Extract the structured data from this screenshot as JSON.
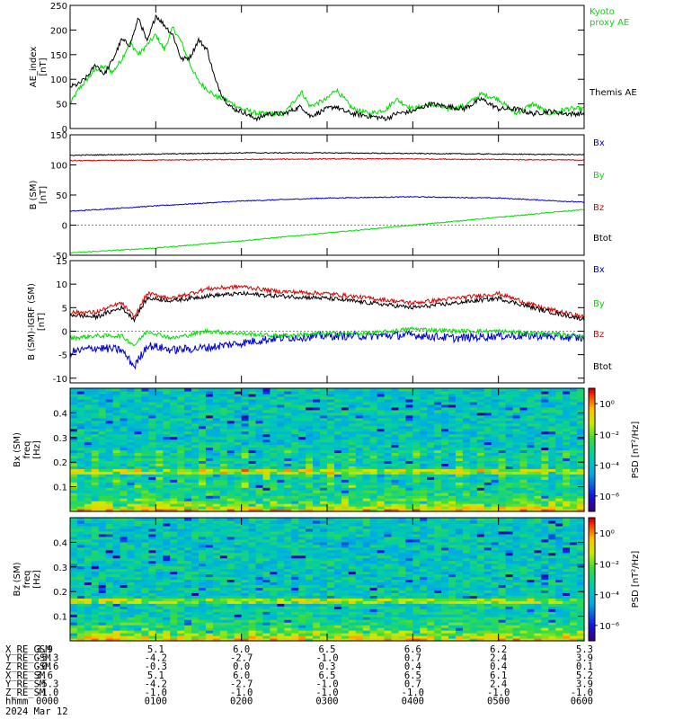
{
  "figure": {
    "date_label": "2024 Mar 12"
  },
  "chart_data": [
    {
      "type": "line",
      "ylabel": [
        "AE_index",
        "[nT]"
      ],
      "ylim": [
        0,
        250
      ],
      "yticks": [
        0,
        50,
        100,
        150,
        200,
        250
      ],
      "xlim": [
        0,
        6
      ],
      "series": [
        {
          "name": "Kyoto proxy AE",
          "color": "#00dd00",
          "x": [
            0,
            0.1,
            0.2,
            0.3,
            0.4,
            0.5,
            0.6,
            0.7,
            0.8,
            0.9,
            1.0,
            1.1,
            1.2,
            1.3,
            1.4,
            1.5,
            1.6,
            1.7,
            1.8,
            1.9,
            2.0,
            2.1,
            2.2,
            2.3,
            2.5,
            2.7,
            2.8,
            3.0,
            3.1,
            3.2,
            3.3,
            3.5,
            3.7,
            3.8,
            4.0,
            4.2,
            4.4,
            4.6,
            4.8,
            5.0,
            5.2,
            5.4,
            5.6,
            5.8,
            6.0
          ],
          "y": [
            50,
            80,
            100,
            120,
            125,
            115,
            140,
            175,
            150,
            170,
            190,
            160,
            205,
            175,
            130,
            95,
            80,
            65,
            60,
            50,
            40,
            35,
            30,
            30,
            30,
            75,
            45,
            60,
            80,
            60,
            40,
            30,
            40,
            60,
            40,
            50,
            40,
            45,
            70,
            60,
            30,
            50,
            30,
            40,
            40
          ]
        },
        {
          "name": "Themis AE",
          "color": "#000000",
          "x": [
            0,
            0.1,
            0.2,
            0.3,
            0.4,
            0.5,
            0.6,
            0.7,
            0.8,
            0.9,
            1.0,
            1.1,
            1.2,
            1.3,
            1.4,
            1.5,
            1.6,
            1.7,
            1.8,
            1.9,
            2.0,
            2.1,
            2.2,
            2.3,
            2.5,
            2.7,
            2.8,
            3.0,
            3.1,
            3.2,
            3.3,
            3.5,
            3.7,
            3.8,
            4.0,
            4.2,
            4.4,
            4.6,
            4.8,
            5.0,
            5.2,
            5.4,
            5.6,
            5.8,
            6.0
          ],
          "y": [
            85,
            90,
            105,
            130,
            110,
            140,
            180,
            170,
            225,
            175,
            230,
            210,
            190,
            140,
            145,
            180,
            160,
            95,
            60,
            40,
            35,
            25,
            20,
            30,
            30,
            45,
            25,
            40,
            45,
            35,
            30,
            25,
            20,
            30,
            35,
            50,
            45,
            40,
            60,
            40,
            40,
            30,
            35,
            30,
            30
          ]
        }
      ]
    },
    {
      "type": "line",
      "ylabel": [
        "B (SM)",
        "[nT]"
      ],
      "ylim": [
        -50,
        150
      ],
      "yticks": [
        -50,
        0,
        50,
        100,
        150
      ],
      "xlim": [
        0,
        6
      ],
      "series": [
        {
          "name": "Bx",
          "color": "#0000cc",
          "x": [
            0,
            1,
            2,
            3,
            4,
            5,
            6
          ],
          "y": [
            23,
            32,
            40,
            45,
            47,
            45,
            38
          ]
        },
        {
          "name": "By",
          "color": "#00dd00",
          "x": [
            0,
            1,
            2,
            3,
            4,
            5,
            6
          ],
          "y": [
            -46,
            -38,
            -26,
            -13,
            0,
            13,
            26
          ]
        },
        {
          "name": "Bz",
          "color": "#dd0000",
          "x": [
            0,
            1,
            2,
            3,
            4,
            5,
            6
          ],
          "y": [
            107,
            108,
            109,
            110,
            110,
            109,
            108
          ]
        },
        {
          "name": "Btot",
          "color": "#000000",
          "x": [
            0,
            1,
            2,
            3,
            4,
            5,
            6
          ],
          "y": [
            116,
            118,
            120,
            120,
            119,
            118,
            117
          ]
        }
      ]
    },
    {
      "type": "line",
      "ylabel": [
        "B (SM)-IGRF (SM)",
        "[nT]"
      ],
      "ylim": [
        -11,
        15
      ],
      "yticks": [
        -10,
        -5,
        0,
        5,
        10,
        15
      ],
      "xlim": [
        0,
        6
      ],
      "series": [
        {
          "name": "Bx",
          "color": "#0000cc",
          "x": [
            0,
            0.3,
            0.6,
            0.75,
            0.9,
            1.2,
            1.6,
            2.0,
            2.4,
            3.0,
            3.5,
            4.0,
            4.5,
            5.0,
            5.5,
            6.0
          ],
          "y": [
            -4.5,
            -3.5,
            -4,
            -7.5,
            -3,
            -4,
            -3.5,
            -2.5,
            -1.5,
            -1,
            -1,
            -0.8,
            -1.5,
            -1,
            -1,
            -1.5
          ]
        },
        {
          "name": "By",
          "color": "#00dd00",
          "x": [
            0,
            0.3,
            0.6,
            0.75,
            0.9,
            1.2,
            1.6,
            2.0,
            2.4,
            3.0,
            3.5,
            4.0,
            4.5,
            5.0,
            5.5,
            6.0
          ],
          "y": [
            -1.5,
            -1,
            -1,
            -3,
            0,
            -1.5,
            0,
            -0.5,
            -1,
            -0.5,
            -0.5,
            0.5,
            0,
            0,
            -0.5,
            -1
          ]
        },
        {
          "name": "Bz",
          "color": "#dd0000",
          "x": [
            0,
            0.3,
            0.6,
            0.75,
            0.9,
            1.2,
            1.6,
            2.0,
            2.4,
            3.0,
            3.5,
            4.0,
            4.5,
            5.0,
            5.5,
            6.0
          ],
          "y": [
            4,
            4,
            6,
            3,
            8,
            7,
            9,
            9.5,
            8.5,
            8,
            7,
            6,
            7,
            8,
            5,
            3
          ]
        },
        {
          "name": "Btot",
          "color": "#000000",
          "x": [
            0,
            0.3,
            0.6,
            0.75,
            0.9,
            1.2,
            1.6,
            2.0,
            2.4,
            3.0,
            3.5,
            4.0,
            4.5,
            5.0,
            5.5,
            6.0
          ],
          "y": [
            3.5,
            3,
            5,
            2.5,
            7,
            6.5,
            7.5,
            8,
            7.5,
            7,
            6,
            5,
            6,
            7,
            4.5,
            2.5
          ]
        }
      ]
    },
    {
      "type": "heatmap",
      "ylabel": [
        "Bx (SM)",
        "freq",
        "[Hz]"
      ],
      "ylim": [
        0,
        0.5
      ],
      "yticks": [
        0.1,
        0.2,
        0.3,
        0.4
      ],
      "xlim": [
        0,
        6
      ],
      "colorbar_label": "PSD [nT²/Hz]",
      "colorbar_ticks": [
        "10⁰",
        "10⁻²",
        "10⁻⁴",
        "10⁻⁶"
      ],
      "colorbar_log_range": [
        -7,
        1
      ]
    },
    {
      "type": "heatmap",
      "ylabel": [
        "Bz (SM)",
        "freq",
        "[Hz]"
      ],
      "ylim": [
        0,
        0.5
      ],
      "yticks": [
        0.1,
        0.2,
        0.3,
        0.4
      ],
      "xlim": [
        0,
        6
      ],
      "colorbar_label": "PSD [nT²/Hz]",
      "colorbar_ticks": [
        "10⁰",
        "10⁻²",
        "10⁻⁴",
        "10⁻⁶"
      ],
      "colorbar_log_range": [
        -7,
        1
      ]
    }
  ],
  "ephemeris": {
    "rows": [
      {
        "label": "X_RE_GSM",
        "values": [
          "3.9",
          "5.1",
          "6.0",
          "6.5",
          "6.6",
          "6.2",
          "5.3"
        ]
      },
      {
        "label": "Y_RE_GSM",
        "values": [
          "-5.3",
          "-4.2",
          "-2.7",
          "-1.0",
          "0.7",
          "2.4",
          "3.9"
        ]
      },
      {
        "label": "Z_RE_GSM",
        "values": [
          "-0.6",
          "-0.3",
          "0.0",
          "0.3",
          "0.4",
          "0.4",
          "0.1"
        ]
      },
      {
        "label": "X_RE_SM",
        "values": [
          "3.6",
          "5.1",
          "6.0",
          "6.5",
          "6.5",
          "6.1",
          "5.2"
        ]
      },
      {
        "label": "Y_RE_SM",
        "values": [
          "-5.3",
          "-4.2",
          "-2.7",
          "-1.0",
          "0.7",
          "2.4",
          "3.9"
        ]
      },
      {
        "label": "Z_RE_SM",
        "values": [
          "-1.0",
          "-1.0",
          "-1.0",
          "-1.0",
          "-1.0",
          "-1.0",
          "-1.0"
        ]
      },
      {
        "label": "hhmm",
        "values": [
          "0000",
          "0100",
          "0200",
          "0300",
          "0400",
          "0500",
          "0600"
        ]
      }
    ]
  }
}
